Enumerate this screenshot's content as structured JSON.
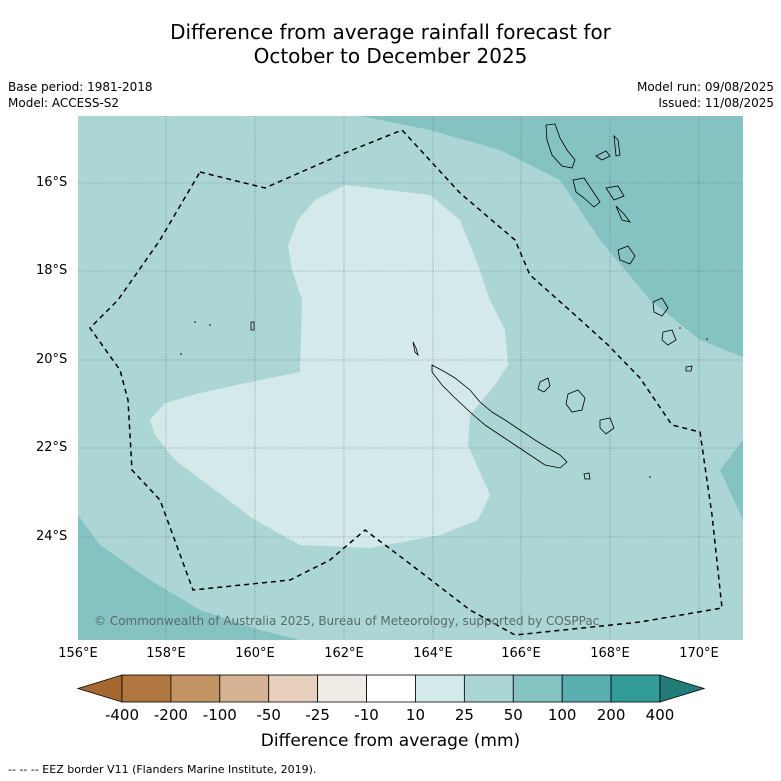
{
  "title_line1": "Difference from average rainfall forecast for",
  "title_line2": "October to December 2025",
  "base_period": "Base period: 1981-2018",
  "model": "Model: ACCESS-S2",
  "model_run": "Model run: 09/08/2025",
  "issued": "Issued: 11/08/2025",
  "copyright": "© Commonwealth of Australia 2025, Bureau of Meteorology, supported by COSPPac",
  "lat_labels": [
    "16°S",
    "18°S",
    "20°S",
    "22°S",
    "24°S"
  ],
  "lon_labels": [
    "156°E",
    "158°E",
    "160°E",
    "162°E",
    "164°E",
    "166°E",
    "168°E",
    "170°E"
  ],
  "colorbar": {
    "ticks": [
      "-400",
      "-200",
      "-100",
      "-50",
      "-25",
      "-10",
      "10",
      "25",
      "50",
      "100",
      "200",
      "400"
    ],
    "colors": [
      "#a5682f",
      "#b07840",
      "#c29363",
      "#d5b294",
      "#e7d0bd",
      "#efebe7",
      "#ffffff",
      "#d4e9e9",
      "#acd6d5",
      "#85c3c3",
      "#59aeae",
      "#339c99",
      "#227c79"
    ],
    "title": "Difference from average (mm)"
  },
  "footer": "--  --  -- EEZ border V11 (Flanders Marine Institute, 2019).",
  "colors": {
    "light_wet": "#d4e9e9",
    "mid_wet": "#acd6d5",
    "more_wet": "#85c3c3"
  }
}
